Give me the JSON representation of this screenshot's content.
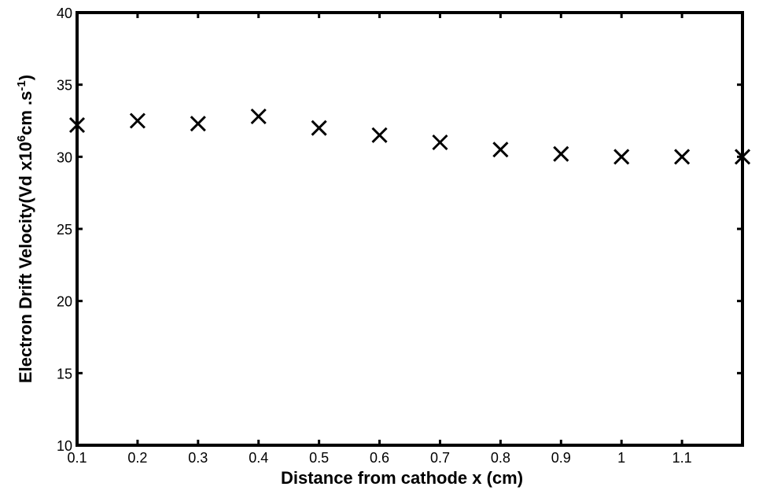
{
  "chart_data": {
    "type": "scatter",
    "title": "",
    "xlabel": "Distance from cathode x (cm)",
    "ylabel": {
      "main": "Electron Drift Velocity(Vd x10",
      "exp1": "6",
      "mid": "cm .s",
      "exp2": "-1",
      "end": ")"
    },
    "xlim": [
      0.1,
      1.2
    ],
    "ylim": [
      10,
      40
    ],
    "xticks": [
      0.1,
      0.2,
      0.3,
      0.4,
      0.5,
      0.6,
      0.7,
      0.8,
      0.9,
      1.0,
      1.1,
      1.2
    ],
    "xtick_labels": [
      "0.1",
      "0.2",
      "0.3",
      "0.4",
      "0.5",
      "0.6",
      "0.7",
      "0.8",
      "0.9",
      "1",
      "1.1",
      ""
    ],
    "yticks": [
      10,
      15,
      20,
      25,
      30,
      35,
      40
    ],
    "ytick_labels": [
      "10",
      "15",
      "20",
      "25",
      "30",
      "35",
      "40"
    ],
    "grid": false,
    "marker": "x",
    "series": [
      {
        "x": [
          0.1,
          0.2,
          0.3,
          0.4,
          0.5,
          0.6,
          0.7,
          0.8,
          0.9,
          1.0,
          1.1,
          1.2
        ],
        "y": [
          32.2,
          32.5,
          32.3,
          32.8,
          32.0,
          31.5,
          31.0,
          30.5,
          30.2,
          30.0,
          30.0,
          30.0
        ]
      }
    ]
  }
}
